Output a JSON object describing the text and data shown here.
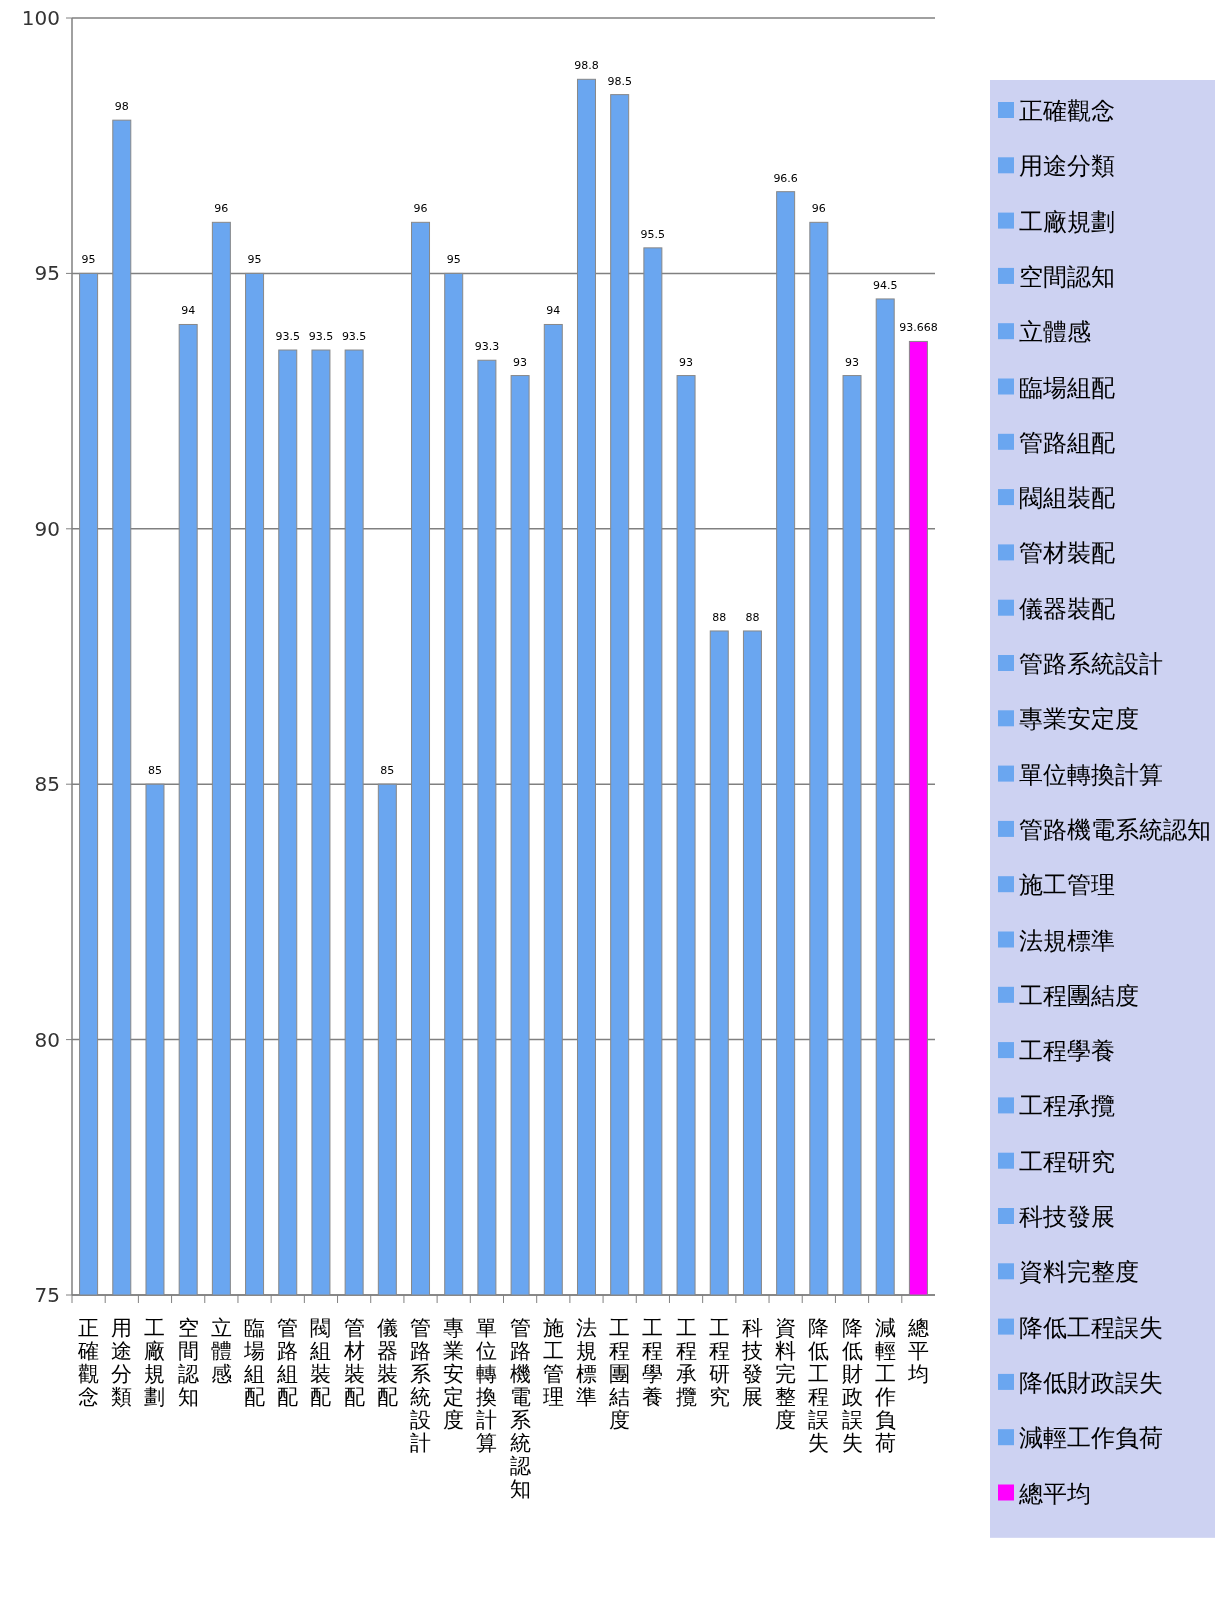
{
  "chart_data": {
    "type": "bar",
    "categories": [
      "正確觀念",
      "用途分類",
      "工廠規劃",
      "空間認知",
      "立體感",
      "臨場組配",
      "管路組配",
      "閥組裝配",
      "管材裝配",
      "儀器裝配",
      "管路系統設計",
      "專業安定度",
      "單位轉換計算",
      "管路機電系統認知",
      "施工管理",
      "法規標準",
      "工程團結度",
      "工程學養",
      "工程承攬",
      "工程研究",
      "科技發展",
      "資料完整度",
      "降低工程誤失",
      "降低財政誤失",
      "減輕工作負荷",
      "總平均"
    ],
    "series": [
      {
        "name": "正確觀念",
        "color": "#6aa6f0",
        "values": [
          95,
          null,
          null,
          null,
          null,
          null,
          null,
          null,
          null,
          null,
          null,
          null,
          null,
          null,
          null,
          null,
          null,
          null,
          null,
          null,
          null,
          null,
          null,
          null,
          null,
          null
        ]
      },
      {
        "name": "用途分類",
        "color": "#6aa6f0",
        "values": [
          null,
          98,
          null,
          null,
          null,
          null,
          null,
          null,
          null,
          null,
          null,
          null,
          null,
          null,
          null,
          null,
          null,
          null,
          null,
          null,
          null,
          null,
          null,
          null,
          null,
          null
        ]
      },
      {
        "name": "工廠規劃",
        "color": "#6aa6f0",
        "values": [
          null,
          null,
          85,
          null,
          null,
          null,
          null,
          null,
          null,
          null,
          null,
          null,
          null,
          null,
          null,
          null,
          null,
          null,
          null,
          null,
          null,
          null,
          null,
          null,
          null,
          null
        ]
      },
      {
        "name": "空間認知",
        "color": "#6aa6f0",
        "values": [
          null,
          null,
          null,
          94,
          null,
          null,
          null,
          null,
          null,
          null,
          null,
          null,
          null,
          null,
          null,
          null,
          null,
          null,
          null,
          null,
          null,
          null,
          null,
          null,
          null,
          null
        ]
      },
      {
        "name": "立體感",
        "color": "#6aa6f0",
        "values": [
          null,
          null,
          null,
          null,
          96,
          null,
          null,
          null,
          null,
          null,
          null,
          null,
          null,
          null,
          null,
          null,
          null,
          null,
          null,
          null,
          null,
          null,
          null,
          null,
          null,
          null
        ]
      },
      {
        "name": "臨場組配",
        "color": "#6aa6f0",
        "values": [
          null,
          null,
          null,
          null,
          null,
          95,
          null,
          null,
          null,
          null,
          null,
          null,
          null,
          null,
          null,
          null,
          null,
          null,
          null,
          null,
          null,
          null,
          null,
          null,
          null,
          null
        ]
      },
      {
        "name": "管路組配",
        "color": "#6aa6f0",
        "values": [
          null,
          null,
          null,
          null,
          null,
          null,
          93.5,
          null,
          null,
          null,
          null,
          null,
          null,
          null,
          null,
          null,
          null,
          null,
          null,
          null,
          null,
          null,
          null,
          null,
          null,
          null
        ]
      },
      {
        "name": "閥組裝配",
        "color": "#6aa6f0",
        "values": [
          null,
          null,
          null,
          null,
          null,
          null,
          null,
          93.5,
          null,
          null,
          null,
          null,
          null,
          null,
          null,
          null,
          null,
          null,
          null,
          null,
          null,
          null,
          null,
          null,
          null,
          null
        ]
      },
      {
        "name": "管材裝配",
        "color": "#6aa6f0",
        "values": [
          null,
          null,
          null,
          null,
          null,
          null,
          null,
          null,
          93.5,
          null,
          null,
          null,
          null,
          null,
          null,
          null,
          null,
          null,
          null,
          null,
          null,
          null,
          null,
          null,
          null,
          null
        ]
      },
      {
        "name": "儀器裝配",
        "color": "#6aa6f0",
        "values": [
          null,
          null,
          null,
          null,
          null,
          null,
          null,
          null,
          null,
          85,
          null,
          null,
          null,
          null,
          null,
          null,
          null,
          null,
          null,
          null,
          null,
          null,
          null,
          null,
          null,
          null
        ]
      },
      {
        "name": "管路系統設計",
        "color": "#6aa6f0",
        "values": [
          null,
          null,
          null,
          null,
          null,
          null,
          null,
          null,
          null,
          null,
          96,
          null,
          null,
          null,
          null,
          null,
          null,
          null,
          null,
          null,
          null,
          null,
          null,
          null,
          null,
          null
        ]
      },
      {
        "name": "專業安定度",
        "color": "#6aa6f0",
        "values": [
          null,
          null,
          null,
          null,
          null,
          null,
          null,
          null,
          null,
          null,
          null,
          95,
          null,
          null,
          null,
          null,
          null,
          null,
          null,
          null,
          null,
          null,
          null,
          null,
          null,
          null
        ]
      },
      {
        "name": "單位轉換計算",
        "color": "#6aa6f0",
        "values": [
          null,
          null,
          null,
          null,
          null,
          null,
          null,
          null,
          null,
          null,
          null,
          null,
          93.3,
          null,
          null,
          null,
          null,
          null,
          null,
          null,
          null,
          null,
          null,
          null,
          null,
          null
        ]
      },
      {
        "name": "管路機電系統認知",
        "color": "#6aa6f0",
        "values": [
          null,
          null,
          null,
          null,
          null,
          null,
          null,
          null,
          null,
          null,
          null,
          null,
          null,
          93,
          null,
          null,
          null,
          null,
          null,
          null,
          null,
          null,
          null,
          null,
          null,
          null
        ]
      },
      {
        "name": "施工管理",
        "color": "#6aa6f0",
        "values": [
          null,
          null,
          null,
          null,
          null,
          null,
          null,
          null,
          null,
          null,
          null,
          null,
          null,
          null,
          94,
          null,
          null,
          null,
          null,
          null,
          null,
          null,
          null,
          null,
          null,
          null
        ]
      },
      {
        "name": "法規標準",
        "color": "#6aa6f0",
        "values": [
          null,
          null,
          null,
          null,
          null,
          null,
          null,
          null,
          null,
          null,
          null,
          null,
          null,
          null,
          null,
          98.8,
          null,
          null,
          null,
          null,
          null,
          null,
          null,
          null,
          null,
          null
        ]
      },
      {
        "name": "工程團結度",
        "color": "#6aa6f0",
        "values": [
          null,
          null,
          null,
          null,
          null,
          null,
          null,
          null,
          null,
          null,
          null,
          null,
          null,
          null,
          null,
          null,
          98.5,
          null,
          null,
          null,
          null,
          null,
          null,
          null,
          null,
          null
        ]
      },
      {
        "name": "工程學養",
        "color": "#6aa6f0",
        "values": [
          null,
          null,
          null,
          null,
          null,
          null,
          null,
          null,
          null,
          null,
          null,
          null,
          null,
          null,
          null,
          null,
          null,
          95.5,
          null,
          null,
          null,
          null,
          null,
          null,
          null,
          null
        ]
      },
      {
        "name": "工程承攬",
        "color": "#6aa6f0",
        "values": [
          null,
          null,
          null,
          null,
          null,
          null,
          null,
          null,
          null,
          null,
          null,
          null,
          null,
          null,
          null,
          null,
          null,
          null,
          93,
          null,
          null,
          null,
          null,
          null,
          null,
          null
        ]
      },
      {
        "name": "工程研究",
        "color": "#6aa6f0",
        "values": [
          null,
          null,
          null,
          null,
          null,
          null,
          null,
          null,
          null,
          null,
          null,
          null,
          null,
          null,
          null,
          null,
          null,
          null,
          null,
          88,
          null,
          null,
          null,
          null,
          null,
          null
        ]
      },
      {
        "name": "科技發展",
        "color": "#6aa6f0",
        "values": [
          null,
          null,
          null,
          null,
          null,
          null,
          null,
          null,
          null,
          null,
          null,
          null,
          null,
          null,
          null,
          null,
          null,
          null,
          null,
          null,
          88,
          null,
          null,
          null,
          null,
          null
        ]
      },
      {
        "name": "資料完整度",
        "color": "#6aa6f0",
        "values": [
          null,
          null,
          null,
          null,
          null,
          null,
          null,
          null,
          null,
          null,
          null,
          null,
          null,
          null,
          null,
          null,
          null,
          null,
          null,
          null,
          null,
          96.6,
          null,
          null,
          null,
          null
        ]
      },
      {
        "name": "降低工程誤失",
        "color": "#6aa6f0",
        "values": [
          null,
          null,
          null,
          null,
          null,
          null,
          null,
          null,
          null,
          null,
          null,
          null,
          null,
          null,
          null,
          null,
          null,
          null,
          null,
          null,
          null,
          null,
          96,
          null,
          null,
          null
        ]
      },
      {
        "name": "降低財政誤失",
        "color": "#6aa6f0",
        "values": [
          null,
          null,
          null,
          null,
          null,
          null,
          null,
          null,
          null,
          null,
          null,
          null,
          null,
          null,
          null,
          null,
          null,
          null,
          null,
          null,
          null,
          null,
          null,
          93,
          null,
          null
        ]
      },
      {
        "name": "減輕工作負荷",
        "color": "#6aa6f0",
        "values": [
          null,
          null,
          null,
          null,
          null,
          null,
          null,
          null,
          null,
          null,
          null,
          null,
          null,
          null,
          null,
          null,
          null,
          null,
          null,
          null,
          null,
          null,
          null,
          null,
          94.5,
          null
        ]
      },
      {
        "name": "總平均",
        "color": "#ff00ff",
        "values": [
          null,
          null,
          null,
          null,
          null,
          null,
          null,
          null,
          null,
          null,
          null,
          null,
          null,
          null,
          null,
          null,
          null,
          null,
          null,
          null,
          null,
          null,
          null,
          null,
          null,
          93.668
        ]
      }
    ],
    "ylim": [
      75,
      100
    ],
    "yticks": [
      75,
      80,
      85,
      90,
      95,
      100
    ],
    "grid": "y",
    "legend": "right",
    "data_labels": true
  }
}
